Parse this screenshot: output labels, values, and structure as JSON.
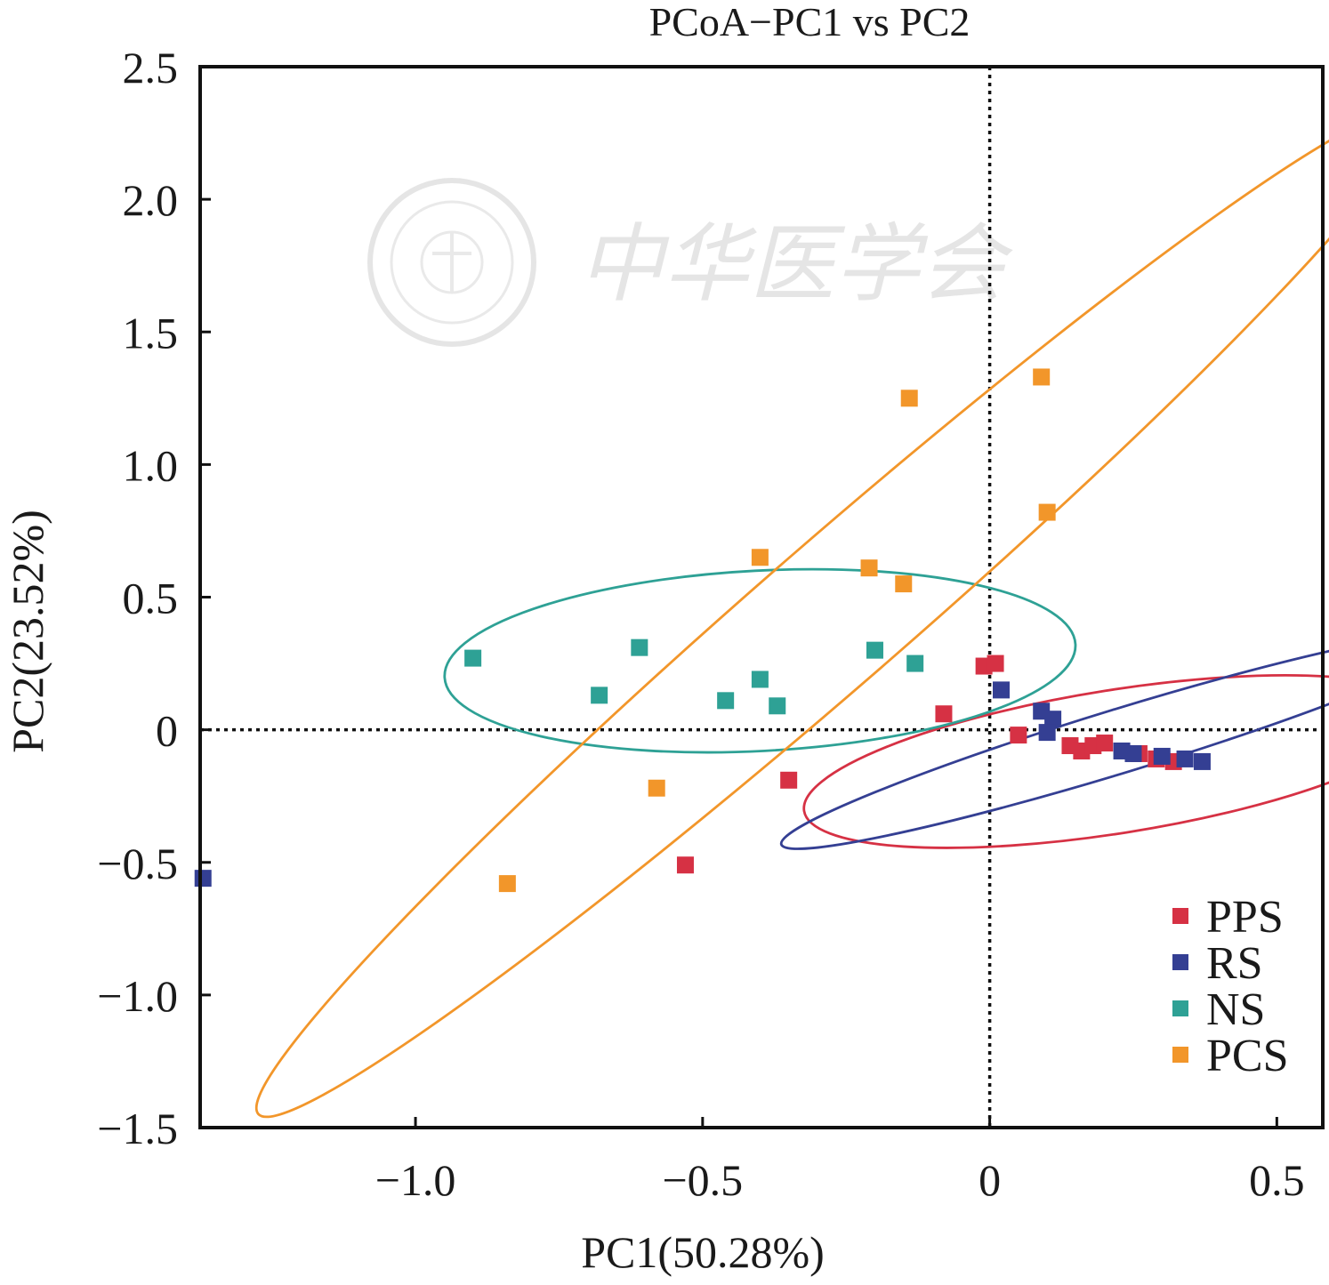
{
  "chart_data": {
    "type": "scatter",
    "title": "PCoA−PC1 vs PC2",
    "xlabel": "PC1(50.28%)",
    "ylabel": "PC2(23.52%)",
    "xlim": [
      -1.375,
      0.58
    ],
    "ylim": [
      -1.5,
      2.5
    ],
    "xticks": [
      -1.0,
      -0.5,
      0,
      0.5
    ],
    "xtick_labels": [
      "−1.0",
      "−0.5",
      "0",
      "0.5"
    ],
    "yticks": [
      -1.5,
      -1.0,
      -0.5,
      0,
      0.5,
      1.0,
      1.5,
      2.0,
      2.5
    ],
    "ytick_labels": [
      "−1.5",
      "−1.0",
      "−0.5",
      "0",
      "0.5",
      "1.0",
      "1.5",
      "2.0",
      "2.5"
    ],
    "reference_lines": {
      "x": 0,
      "y": 0,
      "style": "dotted"
    },
    "grid": false,
    "legend_position": "bottom-right",
    "watermark_text": "中华医学会",
    "series": [
      {
        "name": "PPS",
        "color": "#d63144",
        "points": [
          [
            -0.01,
            0.24
          ],
          [
            0.01,
            0.25
          ],
          [
            -0.08,
            0.06
          ],
          [
            0.05,
            -0.02
          ],
          [
            0.14,
            -0.06
          ],
          [
            0.16,
            -0.08
          ],
          [
            0.18,
            -0.06
          ],
          [
            0.2,
            -0.05
          ],
          [
            0.26,
            -0.09
          ],
          [
            0.29,
            -0.11
          ],
          [
            0.32,
            -0.12
          ],
          [
            -0.35,
            -0.19
          ],
          [
            -0.53,
            -0.51
          ]
        ],
        "ellipse": {
          "cx": 0.22,
          "cy": -0.12,
          "rx": 0.55,
          "ry": 0.27,
          "angle_deg": -9
        }
      },
      {
        "name": "RS",
        "color": "#343f93",
        "points": [
          [
            0.02,
            0.15
          ],
          [
            0.09,
            0.07
          ],
          [
            0.11,
            0.04
          ],
          [
            0.1,
            -0.01
          ],
          [
            0.23,
            -0.08
          ],
          [
            0.25,
            -0.09
          ],
          [
            0.3,
            -0.1
          ],
          [
            0.34,
            -0.11
          ],
          [
            0.37,
            -0.12
          ],
          [
            -1.37,
            -0.56
          ]
        ],
        "ellipse": {
          "cx": 0.23,
          "cy": -0.04,
          "rx": 0.62,
          "ry": 0.12,
          "angle_deg": -17
        }
      },
      {
        "name": "NS",
        "color": "#2ea195",
        "points": [
          [
            -0.9,
            0.27
          ],
          [
            -0.61,
            0.31
          ],
          [
            -0.68,
            0.13
          ],
          [
            -0.46,
            0.11
          ],
          [
            -0.4,
            0.19
          ],
          [
            -0.37,
            0.09
          ],
          [
            -0.2,
            0.3
          ],
          [
            -0.13,
            0.25
          ]
        ],
        "ellipse": {
          "cx": -0.4,
          "cy": 0.26,
          "rx": 0.55,
          "ry": 0.34,
          "angle_deg": -3
        }
      },
      {
        "name": "PCS",
        "color": "#f2962a",
        "points": [
          [
            0.09,
            1.33
          ],
          [
            -0.14,
            1.25
          ],
          [
            0.1,
            0.82
          ],
          [
            -0.4,
            0.65
          ],
          [
            -0.21,
            0.61
          ],
          [
            -0.15,
            0.55
          ],
          [
            -0.58,
            -0.22
          ],
          [
            -0.84,
            -0.58
          ]
        ],
        "ellipse": {
          "cx": -0.27,
          "cy": 0.44,
          "rx": 1.33,
          "ry": 0.27,
          "angle_deg": -41
        }
      }
    ]
  }
}
